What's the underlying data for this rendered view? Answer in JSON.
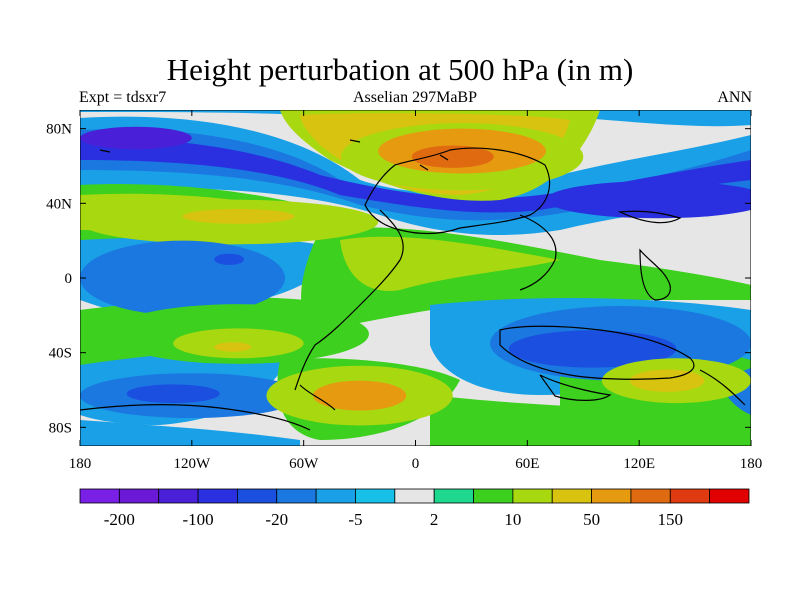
{
  "title": "Height perturbation at 500 hPa (in m)",
  "subtitle_left": "Expt = tdsxr7",
  "subtitle_center": "Asselian 297MaBP",
  "subtitle_right": "ANN",
  "map": {
    "projection": "cylindrical-equidistant",
    "lon_range": [
      -180,
      180
    ],
    "lat_range": [
      -90,
      90
    ],
    "x_ticks": [
      {
        "lon": -180,
        "label": "180"
      },
      {
        "lon": -120,
        "label": "120W"
      },
      {
        "lon": -60,
        "label": "60W"
      },
      {
        "lon": 0,
        "label": "0"
      },
      {
        "lon": 60,
        "label": "60E"
      },
      {
        "lon": 120,
        "label": "120E"
      },
      {
        "lon": 180,
        "label": "180"
      }
    ],
    "y_ticks": [
      {
        "lat": 80,
        "label": "80N"
      },
      {
        "lat": 40,
        "label": "40N"
      },
      {
        "lat": 0,
        "label": "0"
      },
      {
        "lat": -40,
        "label": "40S"
      },
      {
        "lat": -80,
        "label": "80S"
      }
    ]
  },
  "colorbar": {
    "colors": [
      "#7a1fe6",
      "#6a1ad6",
      "#4a1fd8",
      "#2a30e0",
      "#1a4fe0",
      "#1a78e0",
      "#1aa0e6",
      "#16c0e8",
      "#e6e6e6",
      "#1ed890",
      "#3ed01e",
      "#a8d810",
      "#d8c410",
      "#e69a10",
      "#e06a10",
      "#e03a10",
      "#e00000"
    ],
    "labels": [
      {
        "boundary": 1,
        "text": "-200"
      },
      {
        "boundary": 3,
        "text": "-100"
      },
      {
        "boundary": 5,
        "text": "-20"
      },
      {
        "boundary": 7,
        "text": "-5"
      },
      {
        "boundary": 9,
        "text": "2"
      },
      {
        "boundary": 11,
        "text": "10"
      },
      {
        "boundary": 13,
        "text": "50"
      },
      {
        "boundary": 15,
        "text": "150"
      }
    ]
  },
  "field_blobs": [
    {
      "lon": -100,
      "lat": 30,
      "rx": 80,
      "ry": 12,
      "color": "#a8d810"
    },
    {
      "lon": -95,
      "lat": 33,
      "rx": 30,
      "ry": 4,
      "color": "#d8c410"
    },
    {
      "lon": 25,
      "lat": 65,
      "rx": 65,
      "ry": 18,
      "color": "#a8d810"
    },
    {
      "lon": 25,
      "lat": 68,
      "rx": 45,
      "ry": 12,
      "color": "#e69a10"
    },
    {
      "lon": 20,
      "lat": 65,
      "rx": 22,
      "ry": 6,
      "color": "#e06a10"
    },
    {
      "lon": -150,
      "lat": 75,
      "rx": 30,
      "ry": 6,
      "color": "#4a1fd8"
    },
    {
      "lon": 130,
      "lat": 42,
      "rx": 60,
      "ry": 10,
      "color": "#2a30e0"
    },
    {
      "lon": -125,
      "lat": 0,
      "rx": 55,
      "ry": 20,
      "color": "#1a78e0"
    },
    {
      "lon": -100,
      "lat": 10,
      "rx": 8,
      "ry": 3,
      "color": "#1a4fe0"
    },
    {
      "lon": 110,
      "lat": -35,
      "rx": 70,
      "ry": 20,
      "color": "#1a78e0"
    },
    {
      "lon": 95,
      "lat": -38,
      "rx": 45,
      "ry": 10,
      "color": "#1a4fe0"
    },
    {
      "lon": -95,
      "lat": -30,
      "rx": 70,
      "ry": 16,
      "color": "#3ed01e"
    },
    {
      "lon": -95,
      "lat": -35,
      "rx": 35,
      "ry": 8,
      "color": "#a8d810"
    },
    {
      "lon": -98,
      "lat": -37,
      "rx": 10,
      "ry": 2.5,
      "color": "#d8c410"
    },
    {
      "lon": -120,
      "lat": -63,
      "rx": 60,
      "ry": 12,
      "color": "#1a78e0"
    },
    {
      "lon": -130,
      "lat": -62,
      "rx": 25,
      "ry": 5,
      "color": "#1a4fe0"
    },
    {
      "lon": -30,
      "lat": -63,
      "rx": 50,
      "ry": 16,
      "color": "#a8d810"
    },
    {
      "lon": -30,
      "lat": -63,
      "rx": 25,
      "ry": 8,
      "color": "#e69a10"
    },
    {
      "lon": 140,
      "lat": -55,
      "rx": 40,
      "ry": 12,
      "color": "#a8d810"
    },
    {
      "lon": 135,
      "lat": -55,
      "rx": 20,
      "ry": 6,
      "color": "#d8c410"
    }
  ]
}
